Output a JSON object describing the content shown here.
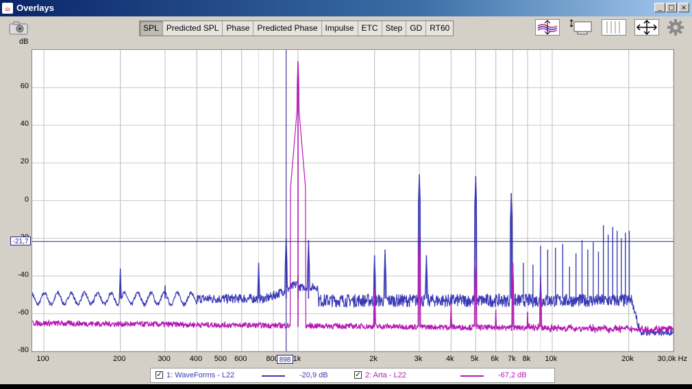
{
  "window": {
    "title": "Overlays",
    "minimize": "_",
    "maximize": "□",
    "close": "×"
  },
  "toolbar": {
    "camera_icon": "camera-icon",
    "tabs": [
      {
        "label": "SPL",
        "active": true
      },
      {
        "label": "Predicted SPL",
        "active": false
      },
      {
        "label": "Phase",
        "active": false
      },
      {
        "label": "Predicted Phase",
        "active": false
      },
      {
        "label": "Impulse",
        "active": false
      },
      {
        "label": "ETC",
        "active": false
      },
      {
        "label": "Step",
        "active": false
      },
      {
        "label": "GD",
        "active": false
      },
      {
        "label": "RT60",
        "active": false
      }
    ],
    "right_icons": [
      "trace-arrange-icon",
      "controls-icon",
      "limits-icon",
      "expand-icon",
      "gear-icon"
    ]
  },
  "chart_data": {
    "type": "line",
    "ylabel": "dB",
    "xlabel": "Hz",
    "x_scale": "log",
    "xlim": [
      90,
      30000
    ],
    "ylim": [
      -80,
      80
    ],
    "y_ticks": [
      "60",
      "40",
      "20",
      "0",
      "-20",
      "-40",
      "-60",
      "-80"
    ],
    "x_ticks": [
      "100",
      "200",
      "300",
      "400",
      "500",
      "600",
      "800",
      "1k",
      "2k",
      "3k",
      "4k",
      "5k",
      "6k",
      "7k",
      "8k",
      "10k",
      "20k",
      "30,0k Hz"
    ],
    "grid": true,
    "cursor": {
      "x_label": "898",
      "y_label": "-21,7",
      "x": 898,
      "y": -21.7
    },
    "series": [
      {
        "name": "1: WaveForms - L22",
        "color": "#3a3ab6",
        "cursor_value": "-20,9 dB",
        "noise_floor": -52,
        "peaks": [
          [
            200,
            -36
          ],
          [
            300,
            -45
          ],
          [
            700,
            -33
          ],
          [
            898,
            -20
          ],
          [
            1000,
            -40
          ],
          [
            1100,
            -21
          ],
          [
            2000,
            -29
          ],
          [
            2200,
            -26
          ],
          [
            3000,
            14
          ],
          [
            3200,
            -29
          ],
          [
            5000,
            13
          ],
          [
            6900,
            4
          ]
        ]
      },
      {
        "name": "2: Arta - L22",
        "color": "#b418b4",
        "cursor_value": "-67,2 dB",
        "noise_floor": -67,
        "peaks": [
          [
            1000,
            74
          ],
          [
            2000,
            -47
          ],
          [
            3000,
            -18
          ],
          [
            4000,
            -55
          ],
          [
            5000,
            -31
          ],
          [
            6000,
            -58
          ],
          [
            7000,
            -33
          ],
          [
            8000,
            -59
          ],
          [
            9000,
            -40
          ]
        ]
      }
    ]
  },
  "legend": {
    "items": [
      {
        "checked": "✓",
        "label": "1: WaveForms - L22",
        "value": "-20,9 dB"
      },
      {
        "checked": "✓",
        "label": "2: Arta - L22",
        "value": "-67,2 dB"
      }
    ]
  }
}
